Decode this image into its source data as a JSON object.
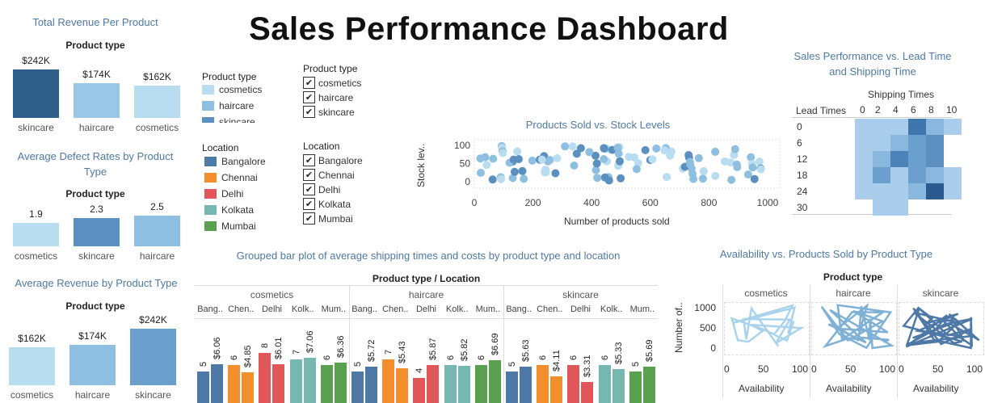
{
  "title": "Sales Performance Dashboard",
  "colors": {
    "title_blue": "#4e79a7",
    "bar_dark": "#2e5f8a",
    "bar_mid": "#8fbfe0",
    "bar_light": "#b8dcf0",
    "bangalore": "#4e79a7",
    "chennai": "#f28e2b",
    "delhi": "#e15759",
    "kolkata": "#76b7b2",
    "mumbai": "#59a14f"
  },
  "product_type_label": "Product type",
  "revenue_panel": {
    "title": "Total Revenue Per Product",
    "header": "Product type",
    "bars": [
      {
        "category": "skincare",
        "label": "$242K",
        "value": 242,
        "color": "#2e5f8a"
      },
      {
        "category": "haircare",
        "label": "$174K",
        "value": 174,
        "color": "#9ac7e6"
      },
      {
        "category": "cosmetics",
        "label": "$162K",
        "value": 162,
        "color": "#b8dcf0"
      }
    ]
  },
  "defect_panel": {
    "title": "Average Defect Rates by Product Type",
    "header": "Product type",
    "bars": [
      {
        "category": "cosmetics",
        "label": "1.9",
        "value": 1.9,
        "color": "#b8dcf0"
      },
      {
        "category": "skincare",
        "label": "2.3",
        "value": 2.3,
        "color": "#5b8fbf"
      },
      {
        "category": "haircare",
        "label": "2.5",
        "value": 2.5,
        "color": "#8fbfe0"
      }
    ]
  },
  "avg_revenue_panel": {
    "title": "Average Revenue by Product Type",
    "header": "Product type",
    "bars": [
      {
        "category": "cosmetics",
        "label": "$162K",
        "value": 162,
        "color": "#b8dcf0"
      },
      {
        "category": "haircare",
        "label": "$174K",
        "value": 174,
        "color": "#8fbfe0"
      },
      {
        "category": "skincare",
        "label": "$242K",
        "value": 242,
        "color": "#6a9ecb"
      }
    ]
  },
  "legend_product": {
    "title": "Product type",
    "items": [
      {
        "label": "cosmetics",
        "color": "#b8dcf0"
      },
      {
        "label": "haircare",
        "color": "#8fbfe0"
      },
      {
        "label": "skincare",
        "color": "#5b8fbf"
      }
    ]
  },
  "filter_product": {
    "title": "Product type",
    "items": [
      "cosmetics",
      "haircare",
      "skincare"
    ]
  },
  "legend_location": {
    "title": "Location",
    "items": [
      {
        "label": "Bangalore",
        "color": "#4e79a7"
      },
      {
        "label": "Chennai",
        "color": "#f28e2b"
      },
      {
        "label": "Delhi",
        "color": "#e15759"
      },
      {
        "label": "Kolkata",
        "color": "#76b7b2"
      },
      {
        "label": "Mumbai",
        "color": "#59a14f"
      }
    ]
  },
  "filter_location": {
    "title": "Location",
    "items": [
      "Bangalore",
      "Chennai",
      "Delhi",
      "Kolkata",
      "Mumbai"
    ]
  },
  "check_mark": "✔",
  "scatter": {
    "title": "Products Sold vs. Stock Levels",
    "xlabel": "Number of products sold",
    "ylabel": "Stock lev..",
    "xticks": [
      "0",
      "200",
      "400",
      "600",
      "800",
      "1000"
    ],
    "yticks": [
      "100",
      "50",
      "0"
    ]
  },
  "heatmap": {
    "title": "Sales Performance vs. Lead Time and Shipping Time",
    "col_header": "Shipping Times",
    "row_header": "Lead Times",
    "cols": [
      "0",
      "2",
      "4",
      "6",
      "8",
      "10"
    ],
    "rows": [
      "0",
      "6",
      "12",
      "18",
      "24",
      "30"
    ]
  },
  "grouped": {
    "title": "Grouped bar plot of average shipping times and costs by product type and location",
    "header": "Product type  /  Location",
    "groups": [
      {
        "name": "cosmetics",
        "locs": [
          "Bang..",
          "Chen..",
          "Delhi",
          "Kolk..",
          "Mum.."
        ],
        "bars": [
          {
            "loc": "Bangalore",
            "time": "5",
            "cost": "$6.06",
            "t": 5,
            "c": 6.06
          },
          {
            "loc": "Chennai",
            "time": "6",
            "cost": "$4.85",
            "t": 6,
            "c": 4.85
          },
          {
            "loc": "Delhi",
            "time": "8",
            "cost": "$6.01",
            "t": 8,
            "c": 6.01
          },
          {
            "loc": "Kolkata",
            "time": "7",
            "cost": "$7.06",
            "t": 7,
            "c": 7.06
          },
          {
            "loc": "Mumbai",
            "time": "6",
            "cost": "$6.36",
            "t": 6,
            "c": 6.36
          }
        ]
      },
      {
        "name": "haircare",
        "locs": [
          "Bang..",
          "Chen..",
          "Delhi",
          "Kolk..",
          "Mum.."
        ],
        "bars": [
          {
            "loc": "Bangalore",
            "time": "5",
            "cost": "$5.72",
            "t": 5,
            "c": 5.72
          },
          {
            "loc": "Chennai",
            "time": "7",
            "cost": "$5.43",
            "t": 7,
            "c": 5.43
          },
          {
            "loc": "Delhi",
            "time": "4",
            "cost": "$5.87",
            "t": 4,
            "c": 5.87
          },
          {
            "loc": "Kolkata",
            "time": "6",
            "cost": "$5.82",
            "t": 6,
            "c": 5.82
          },
          {
            "loc": "Mumbai",
            "time": "6",
            "cost": "$6.69",
            "t": 6,
            "c": 6.69
          }
        ]
      },
      {
        "name": "skincare",
        "locs": [
          "Bang..",
          "Chen..",
          "Delhi",
          "Kolk..",
          "Mum.."
        ],
        "bars": [
          {
            "loc": "Bangalore",
            "time": "5",
            "cost": "$5.63",
            "t": 5,
            "c": 5.63
          },
          {
            "loc": "Chennai",
            "time": "6",
            "cost": "$4.11",
            "t": 6,
            "c": 4.11
          },
          {
            "loc": "Delhi",
            "time": "6",
            "cost": "$3.31",
            "t": 6,
            "c": 3.31
          },
          {
            "loc": "Kolkata",
            "time": "6",
            "cost": "$5.33",
            "t": 6,
            "c": 5.33
          },
          {
            "loc": "Mumbai",
            "time": "5",
            "cost": "$5.69",
            "t": 5,
            "c": 5.69
          }
        ]
      }
    ]
  },
  "availability": {
    "title": "Availability vs. Products Sold by Product Type",
    "header": "Product type",
    "ylabel": "Number of..",
    "xlabel": "Availability",
    "yticks": [
      "1000",
      "500",
      "0"
    ],
    "xticks": [
      "0",
      "50",
      "100"
    ],
    "panels": [
      "cosmetics",
      "haircare",
      "skincare"
    ]
  }
}
